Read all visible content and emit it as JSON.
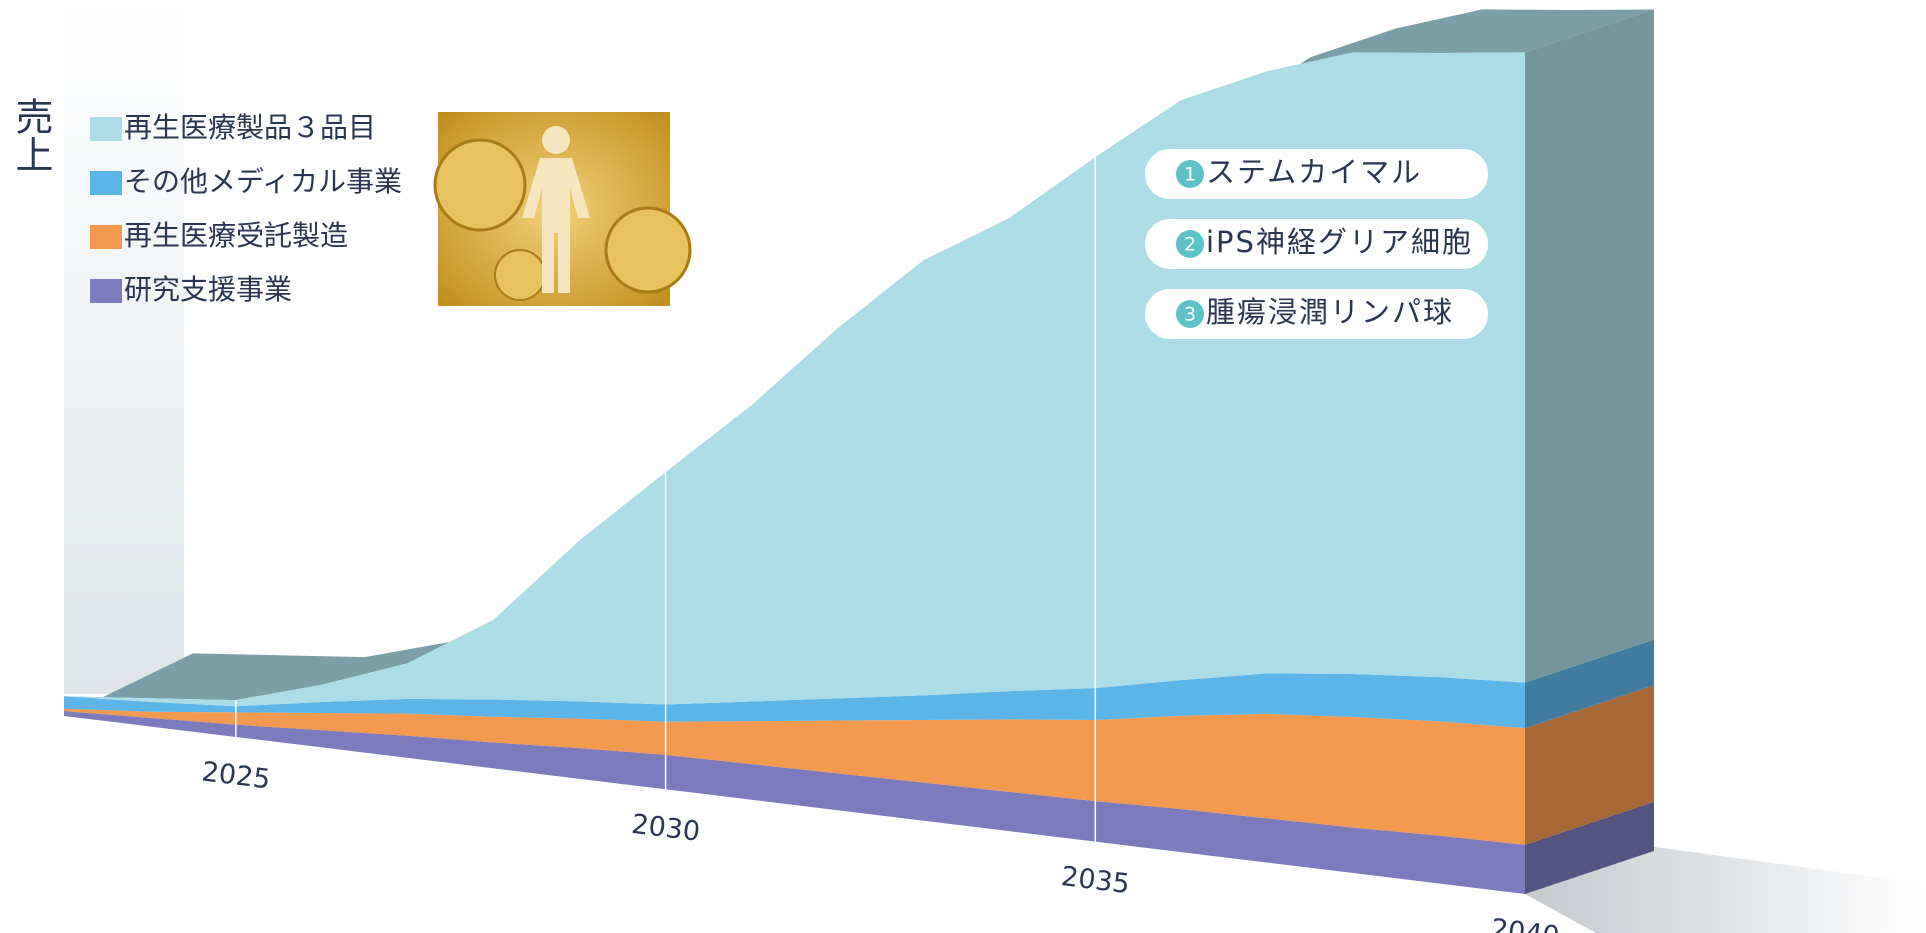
{
  "chart_data": {
    "type": "stacked_area",
    "y_label": "売上",
    "x": [
      2023,
      2024,
      2025,
      2026,
      2027,
      2028,
      2029,
      2030,
      2031,
      2032,
      2033,
      2034,
      2035,
      2036,
      2037,
      2038,
      2039,
      2040
    ],
    "xlim": [
      2023,
      2040
    ],
    "xticks": [
      2025,
      2030,
      2035,
      2040
    ],
    "ylim": [
      0,
      700
    ],
    "series": [
      {
        "name": "再生医療製品３品目",
        "color": "#acdce6",
        "values": [
          0,
          3,
          5,
          14,
          29,
          65,
          131,
          189,
          241,
          301,
          354,
          385,
          432,
          472,
          490,
          506,
          508,
          513
        ]
      },
      {
        "name": "その他メディカル事業",
        "color": "#5bb5e8",
        "values": [
          10,
          8,
          5,
          9,
          12,
          14,
          14,
          14,
          16,
          18,
          20,
          23,
          26,
          29,
          33,
          35,
          36,
          37
        ]
      },
      {
        "name": "再生医療受託製造",
        "color": "#f2994f",
        "values": [
          2,
          5,
          10,
          14,
          18,
          21,
          24,
          27,
          35,
          43,
          51,
          59,
          66,
          76,
          85,
          90,
          93,
          95
        ]
      },
      {
        "name": "研究支援事業",
        "color": "#7b7bbd",
        "values": [
          4,
          7,
          10,
          14,
          18,
          21,
          25,
          28,
          29,
          30,
          31,
          32,
          33,
          35,
          36,
          37,
          39,
          40
        ]
      }
    ],
    "annotations": [
      {
        "number": "1",
        "text": "ステムカイマル"
      },
      {
        "number": "2",
        "text": "iPS神経グリア細胞"
      },
      {
        "number": "3",
        "text": "腫瘍浸潤リンパ球"
      }
    ]
  }
}
